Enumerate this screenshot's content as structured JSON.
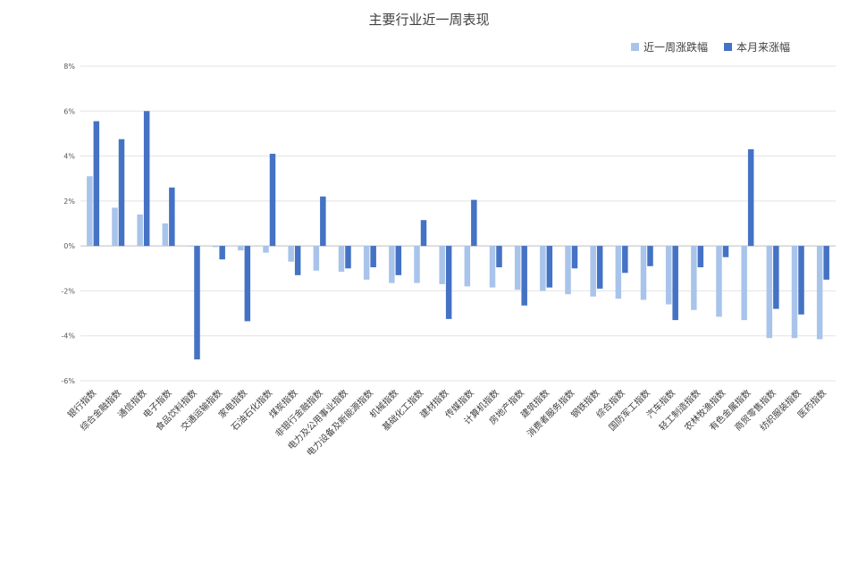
{
  "chart_data": {
    "type": "bar",
    "title": "主要行业近一周表现",
    "ylim": [
      -6,
      8
    ],
    "yticks": [
      -6,
      -4,
      -2,
      0,
      2,
      4,
      6,
      8
    ],
    "ytick_labels": [
      "-6%",
      "-4%",
      "-2%",
      "0%",
      "2%",
      "4%",
      "6%",
      "8%"
    ],
    "grid": true,
    "legend_position": "top-right",
    "categories": [
      "银行指数",
      "综合金融指数",
      "通信指数",
      "电子指数",
      "食品饮料指数",
      "交通运输指数",
      "家电指数",
      "石油石化指数",
      "煤炭指数",
      "非银行金融指数",
      "电力及公用事业指数",
      "电力设备及新能源指数",
      "机械指数",
      "基础化工指数",
      "建材指数",
      "传媒指数",
      "计算机指数",
      "房地产指数",
      "建筑指数",
      "消费者服务指数",
      "钢铁指数",
      "综合指数",
      "国防军工指数",
      "汽车指数",
      "轻工制造指数",
      "农林牧渔指数",
      "有色金属指数",
      "商贸零售指数",
      "纺织服装指数",
      "医药指数"
    ],
    "series": [
      {
        "name": "近一周涨跌幅",
        "color": "#a9c4eb",
        "values": [
          3.1,
          1.7,
          1.4,
          1.0,
          -0.02,
          -0.05,
          -0.2,
          -0.3,
          -0.7,
          -1.1,
          -1.15,
          -1.5,
          -1.65,
          -1.65,
          -1.7,
          -1.8,
          -1.85,
          -1.95,
          -2.0,
          -2.15,
          -2.25,
          -2.35,
          -2.4,
          -2.6,
          -2.85,
          -3.15,
          -3.3,
          -4.1,
          -4.1,
          -4.15
        ]
      },
      {
        "name": "本月来涨幅",
        "color": "#4472c4",
        "values": [
          5.55,
          4.75,
          6.0,
          2.6,
          -5.05,
          -0.6,
          -3.35,
          4.1,
          -1.3,
          2.2,
          -1.0,
          -0.95,
          -1.3,
          1.15,
          -3.25,
          2.05,
          -0.95,
          -2.65,
          -1.85,
          -1.0,
          -1.9,
          -1.2,
          -0.9,
          -3.3,
          -0.95,
          -0.5,
          4.3,
          -2.8,
          -3.05,
          -1.5
        ]
      }
    ]
  }
}
